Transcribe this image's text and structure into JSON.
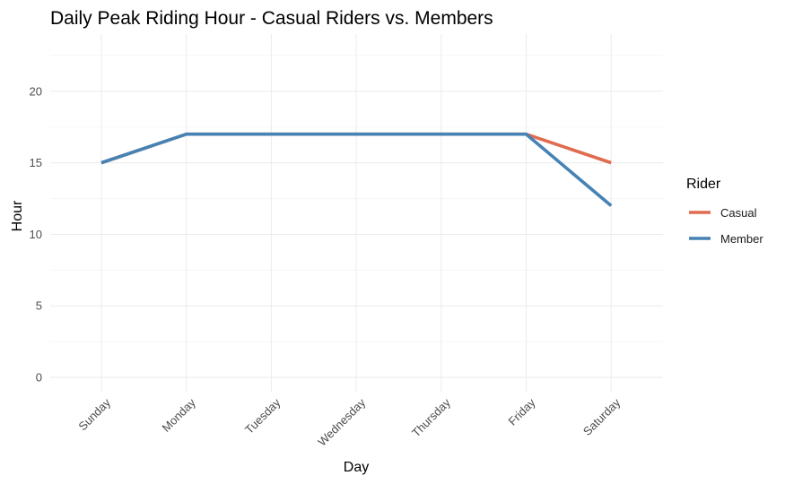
{
  "chart_data": {
    "type": "line",
    "title": "Daily Peak Riding Hour - Casual Riders vs. Members",
    "xlabel": "Day",
    "ylabel": "Hour",
    "categories": [
      "Sunday",
      "Monday",
      "Tuesday",
      "Wednesday",
      "Thursday",
      "Friday",
      "Saturday"
    ],
    "ylim": [
      -1,
      24
    ],
    "yticks": [
      0,
      5,
      10,
      15,
      20
    ],
    "grid": true,
    "legend": {
      "title": "Rider",
      "placement": "right"
    },
    "series": [
      {
        "name": "Casual",
        "color": "#E06C50",
        "values": [
          15,
          17,
          17,
          17,
          17,
          17,
          15
        ]
      },
      {
        "name": "Member",
        "color": "#4682B4",
        "values": [
          15,
          17,
          17,
          17,
          17,
          17,
          12
        ]
      }
    ]
  }
}
